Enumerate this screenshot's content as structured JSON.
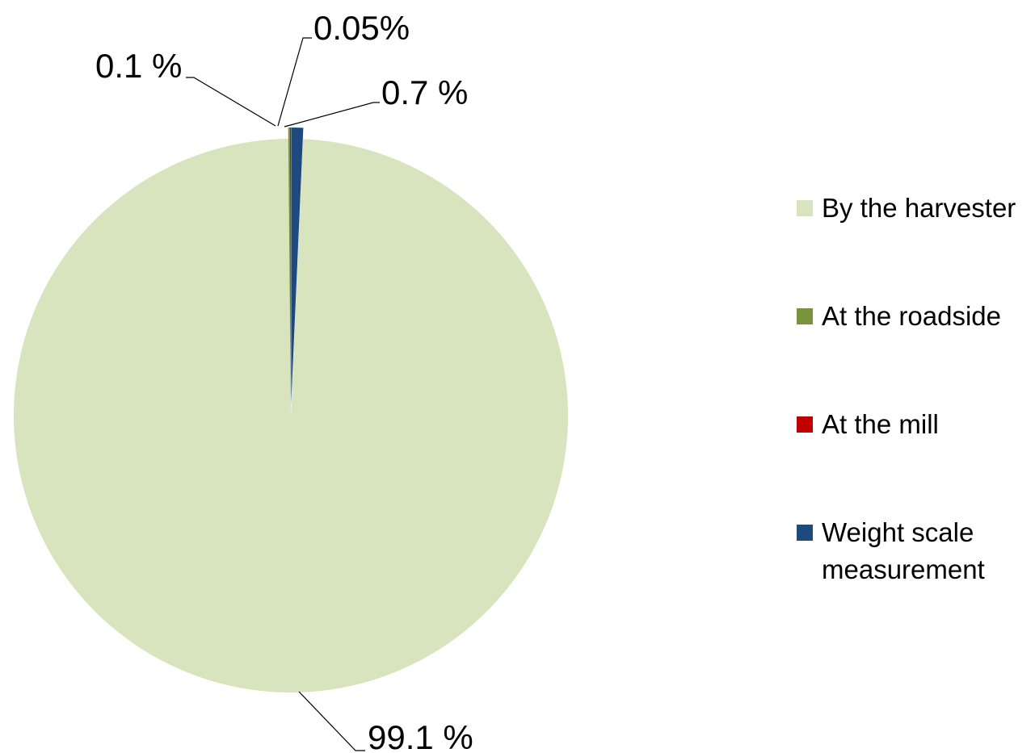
{
  "chart_data": {
    "type": "pie",
    "categories": [
      "By the harvester",
      "At the roadside",
      "At the mill",
      "Weight scale measurement"
    ],
    "values": [
      99.1,
      0.1,
      0.05,
      0.7
    ],
    "data_labels": [
      "99.1 %",
      "0.1 %",
      "0.05%",
      "0.7 %"
    ],
    "colors": [
      "#d7e4bd",
      "#77933c",
      "#c00000",
      "#1f497d"
    ],
    "legend": {
      "position": "right",
      "entries": [
        "By the harvester",
        "At the roadside",
        "At the mill",
        "Weight scale measurement"
      ]
    },
    "title": ""
  }
}
